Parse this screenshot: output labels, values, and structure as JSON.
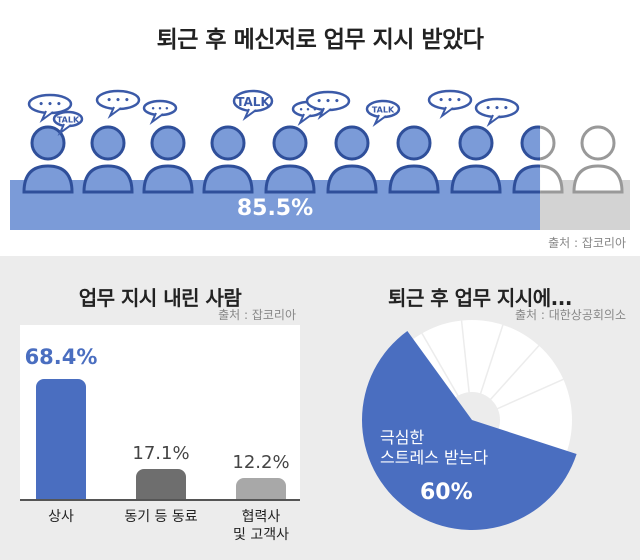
{
  "top": {
    "title": "퇴근 후 메신저로 업무 지시 받았다",
    "value_label": "85.5%",
    "source": "출처 : 잡코리아",
    "bubbles": {
      "talk": "TALK",
      "dots": "• • •"
    }
  },
  "left": {
    "title": "업무 지시 내린 사람",
    "source": "출처 : 잡코리아"
  },
  "right": {
    "title": "퇴근 후 업무 지시에...",
    "source": "출처 : 대한상공회의소",
    "label": "극심한\n스트레스 받는다",
    "value_label": "60%"
  },
  "colors": {
    "blue": "#4a6ec0",
    "light_blue": "#7b9bd8",
    "gray_dark": "#6e6e6e",
    "gray_light": "#a8a8a8",
    "pie_rest": "#ffffff"
  },
  "chart_data": [
    {
      "type": "bar",
      "title": "퇴근 후 메신저로 업무 지시 받았다",
      "values": [
        85.5
      ],
      "ylim": [
        0,
        100
      ],
      "value_labels": [
        "85.5%"
      ]
    },
    {
      "type": "bar",
      "title": "업무 지시 내린 사람",
      "categories": [
        "상사",
        "동기 등 동료",
        "협력사\n및 고객사"
      ],
      "values": [
        68.4,
        17.1,
        12.2
      ],
      "value_labels": [
        "68.4%",
        "17.1%",
        "12.2%"
      ],
      "ylim": [
        0,
        80
      ]
    },
    {
      "type": "pie",
      "title": "퇴근 후 업무 지시에...",
      "slices": [
        {
          "label": "극심한 스트레스 받는다",
          "value": 60
        },
        {
          "label": "",
          "value": 40
        }
      ],
      "value_labels": [
        "60%"
      ]
    }
  ]
}
